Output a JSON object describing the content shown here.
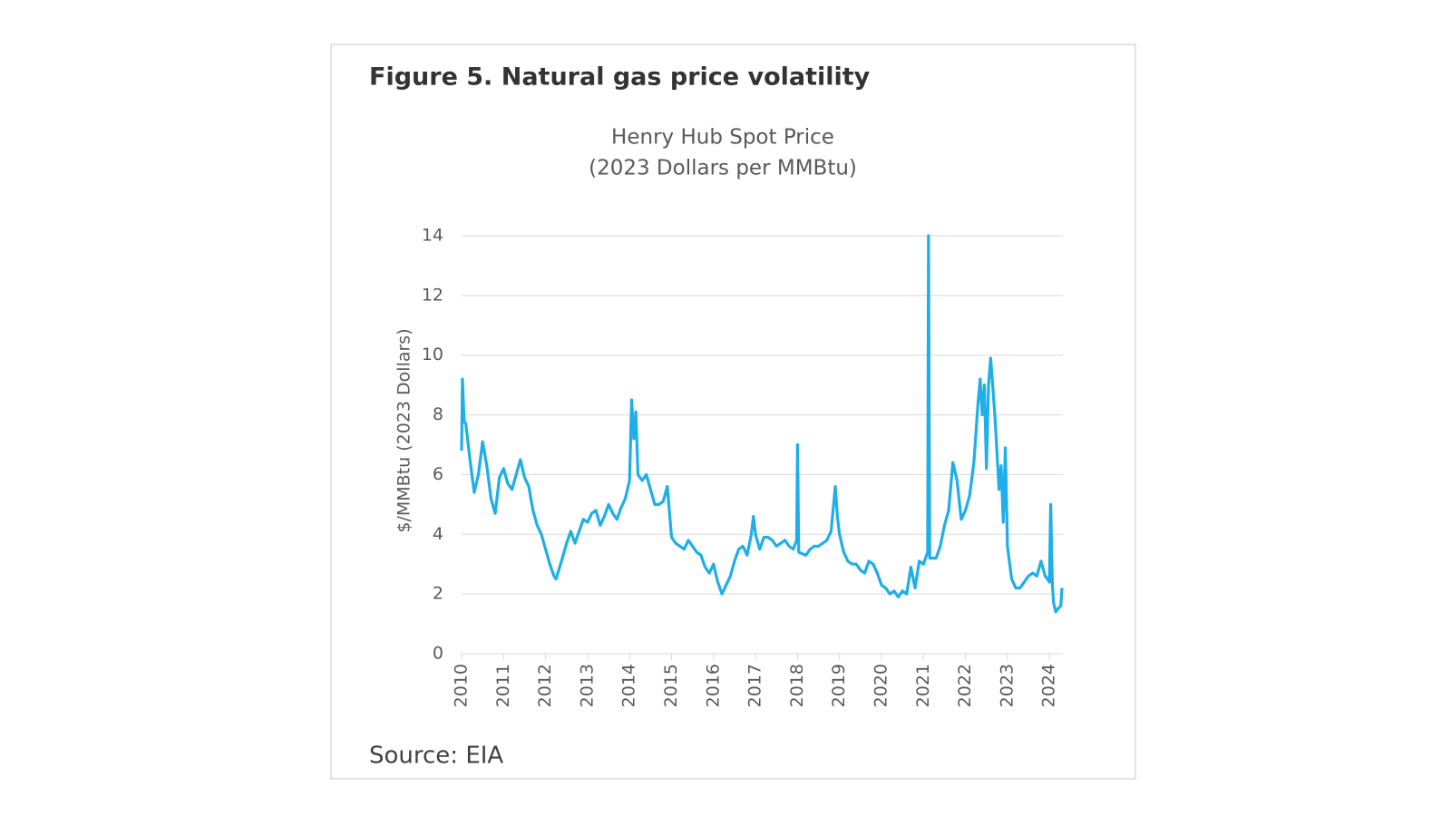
{
  "header": {
    "title": "Figure 5. Natural gas price volatility"
  },
  "source": "Source: EIA",
  "chart_data": {
    "type": "line",
    "title": "Henry Hub Spot Price",
    "subtitle": "(2023 Dollars per MMBtu)",
    "y_label": "$/MMBtu (2023 Dollars)",
    "color": "#1eaee8",
    "grid": true,
    "xlim": [
      2010,
      2024.32
    ],
    "xticks": [
      2010,
      2011,
      2012,
      2013,
      2014,
      2015,
      2016,
      2017,
      2018,
      2019,
      2020,
      2021,
      2022,
      2023,
      2024
    ],
    "ylim": [
      0,
      14
    ],
    "yticks": [
      0,
      2,
      4,
      6,
      8,
      10,
      12,
      14
    ],
    "x": [
      2010.0,
      2010.02,
      2010.06,
      2010.1,
      2010.2,
      2010.3,
      2010.4,
      2010.5,
      2010.6,
      2010.7,
      2010.8,
      2010.9,
      2011.0,
      2011.1,
      2011.2,
      2011.3,
      2011.4,
      2011.5,
      2011.6,
      2011.7,
      2011.8,
      2011.9,
      2012.0,
      2012.1,
      2012.2,
      2012.25,
      2012.4,
      2012.5,
      2012.6,
      2012.7,
      2012.8,
      2012.9,
      2013.0,
      2013.1,
      2013.2,
      2013.3,
      2013.4,
      2013.5,
      2013.6,
      2013.7,
      2013.8,
      2013.9,
      2014.0,
      2014.05,
      2014.1,
      2014.15,
      2014.2,
      2014.3,
      2014.4,
      2014.5,
      2014.6,
      2014.7,
      2014.8,
      2014.9,
      2015.0,
      2015.1,
      2015.2,
      2015.3,
      2015.4,
      2015.5,
      2015.6,
      2015.7,
      2015.8,
      2015.9,
      2016.0,
      2016.1,
      2016.2,
      2016.3,
      2016.4,
      2016.5,
      2016.6,
      2016.7,
      2016.8,
      2016.9,
      2016.95,
      2017.0,
      2017.1,
      2017.2,
      2017.3,
      2017.4,
      2017.5,
      2017.6,
      2017.7,
      2017.8,
      2017.9,
      2017.98,
      2018.0,
      2018.03,
      2018.2,
      2018.3,
      2018.4,
      2018.5,
      2018.6,
      2018.7,
      2018.8,
      2018.9,
      2018.95,
      2019.0,
      2019.1,
      2019.2,
      2019.3,
      2019.4,
      2019.5,
      2019.6,
      2019.7,
      2019.8,
      2019.9,
      2020.0,
      2020.1,
      2020.2,
      2020.3,
      2020.4,
      2020.5,
      2020.6,
      2020.7,
      2020.8,
      2020.9,
      2021.0,
      2021.1,
      2021.12,
      2021.15,
      2021.3,
      2021.4,
      2021.5,
      2021.6,
      2021.7,
      2021.8,
      2021.9,
      2022.0,
      2022.1,
      2022.2,
      2022.3,
      2022.35,
      2022.4,
      2022.45,
      2022.5,
      2022.55,
      2022.6,
      2022.7,
      2022.8,
      2022.85,
      2022.9,
      2022.95,
      2023.0,
      2023.1,
      2023.2,
      2023.3,
      2023.4,
      2023.5,
      2023.6,
      2023.7,
      2023.8,
      2023.9,
      2024.0,
      2024.03,
      2024.07,
      2024.1,
      2024.15,
      2024.2,
      2024.27,
      2024.3
    ],
    "values": [
      6.8,
      9.2,
      7.8,
      7.7,
      6.5,
      5.4,
      6.0,
      7.1,
      6.3,
      5.2,
      4.7,
      5.9,
      6.2,
      5.7,
      5.5,
      6.0,
      6.5,
      5.9,
      5.6,
      4.8,
      4.3,
      4.0,
      3.5,
      3.0,
      2.6,
      2.5,
      3.2,
      3.7,
      4.1,
      3.7,
      4.1,
      4.5,
      4.4,
      4.7,
      4.8,
      4.3,
      4.6,
      5.0,
      4.7,
      4.5,
      4.9,
      5.2,
      5.8,
      8.5,
      7.2,
      8.1,
      6.0,
      5.8,
      6.0,
      5.5,
      5.0,
      5.0,
      5.1,
      5.6,
      3.9,
      3.7,
      3.6,
      3.5,
      3.8,
      3.6,
      3.4,
      3.3,
      2.9,
      2.7,
      3.0,
      2.4,
      2.0,
      2.3,
      2.6,
      3.1,
      3.5,
      3.6,
      3.3,
      4.0,
      4.6,
      4.0,
      3.5,
      3.9,
      3.9,
      3.8,
      3.6,
      3.7,
      3.8,
      3.6,
      3.5,
      3.8,
      7.0,
      3.4,
      3.3,
      3.5,
      3.6,
      3.6,
      3.7,
      3.8,
      4.1,
      5.6,
      4.6,
      4.0,
      3.4,
      3.1,
      3.0,
      3.0,
      2.8,
      2.7,
      3.1,
      3.0,
      2.7,
      2.3,
      2.2,
      2.0,
      2.1,
      1.9,
      2.1,
      2.0,
      2.9,
      2.2,
      3.1,
      3.0,
      3.4,
      14.0,
      3.2,
      3.2,
      3.6,
      4.3,
      4.8,
      6.4,
      5.8,
      4.5,
      4.8,
      5.3,
      6.4,
      8.4,
      9.2,
      8.0,
      9.0,
      6.2,
      9.0,
      9.9,
      8.0,
      5.5,
      6.3,
      4.4,
      6.9,
      3.6,
      2.5,
      2.2,
      2.2,
      2.4,
      2.6,
      2.7,
      2.6,
      3.1,
      2.6,
      2.4,
      5.0,
      2.3,
      1.7,
      1.4,
      1.5,
      1.6,
      2.2
    ]
  }
}
